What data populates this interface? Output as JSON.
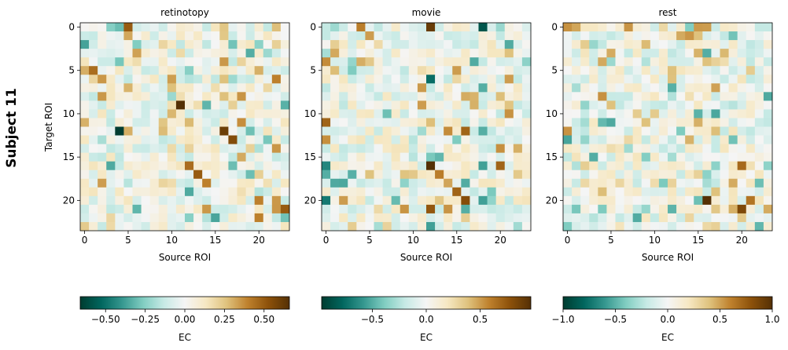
{
  "figure": {
    "row_label": "Subject 11",
    "ylabel": "Target ROI",
    "xlabel": "Source ROI",
    "colorbar_label": "EC",
    "colormap": [
      "#003c30",
      "#01665e",
      "#35978f",
      "#80cdc1",
      "#c7eae5",
      "#f5f5f5",
      "#f6e8c3",
      "#dfc27d",
      "#bf812d",
      "#8c510a",
      "#543005"
    ]
  },
  "chart_data": [
    {
      "type": "heatmap",
      "title": "retinotopy",
      "xlabel": "Source ROI",
      "ylabel": "Target ROI",
      "n": 24,
      "x_ticks": [
        0,
        5,
        10,
        15,
        20
      ],
      "y_ticks": [
        0,
        5,
        10,
        15,
        20
      ],
      "vmin": -0.66,
      "vmax": 0.66,
      "colorbar_ticks": [
        -0.5,
        -0.25,
        0.0,
        0.25,
        0.5
      ],
      "colorbar_tick_labels": [
        "−0.50",
        "−0.25",
        "0.00",
        "0.25",
        "0.50"
      ],
      "colorbar_label": "EC",
      "seed": 11,
      "highlights": [
        {
          "row": 0,
          "col": 5,
          "value": 0.5
        },
        {
          "row": 0,
          "col": 4,
          "value": -0.3
        },
        {
          "row": 0,
          "col": 16,
          "value": 0.25
        },
        {
          "row": 5,
          "col": 1,
          "value": 0.45
        },
        {
          "row": 4,
          "col": 16,
          "value": 0.35
        },
        {
          "row": 5,
          "col": 12,
          "value": -0.25
        },
        {
          "row": 6,
          "col": 22,
          "value": 0.4
        },
        {
          "row": 8,
          "col": 2,
          "value": 0.35
        },
        {
          "row": 9,
          "col": 11,
          "value": 0.66
        },
        {
          "row": 12,
          "col": 4,
          "value": -0.66
        },
        {
          "row": 12,
          "col": 16,
          "value": 0.6
        },
        {
          "row": 13,
          "col": 17,
          "value": 0.55
        },
        {
          "row": 11,
          "col": 9,
          "value": 0.25
        },
        {
          "row": 16,
          "col": 3,
          "value": -0.35
        },
        {
          "row": 16,
          "col": 12,
          "value": 0.45
        },
        {
          "row": 16,
          "col": 17,
          "value": -0.3
        },
        {
          "row": 17,
          "col": 13,
          "value": 0.5
        },
        {
          "row": 17,
          "col": 19,
          "value": -0.3
        },
        {
          "row": 18,
          "col": 14,
          "value": 0.4
        },
        {
          "row": 19,
          "col": 12,
          "value": -0.35
        },
        {
          "row": 20,
          "col": 20,
          "value": 0.4
        },
        {
          "row": 20,
          "col": 22,
          "value": 0.35
        },
        {
          "row": 21,
          "col": 23,
          "value": 0.5
        },
        {
          "row": 22,
          "col": 20,
          "value": 0.4
        },
        {
          "row": 21,
          "col": 14,
          "value": 0.35
        },
        {
          "row": 22,
          "col": 12,
          "value": -0.25
        }
      ]
    },
    {
      "type": "heatmap",
      "title": "movie",
      "xlabel": "Source ROI",
      "ylabel": "",
      "n": 24,
      "x_ticks": [
        0,
        5,
        10,
        15,
        20
      ],
      "y_ticks": [
        0,
        5,
        10,
        15,
        20
      ],
      "vmin": -0.97,
      "vmax": 0.97,
      "colorbar_ticks": [
        -0.5,
        0.0,
        0.5
      ],
      "colorbar_tick_labels": [
        "−0.5",
        "0.0",
        "0.5"
      ],
      "colorbar_label": "EC",
      "seed": 27,
      "highlights": [
        {
          "row": 0,
          "col": 12,
          "value": 0.9
        },
        {
          "row": 0,
          "col": 18,
          "value": -0.85
        },
        {
          "row": 0,
          "col": 4,
          "value": 0.6
        },
        {
          "row": 1,
          "col": 5,
          "value": 0.5
        },
        {
          "row": 4,
          "col": 0,
          "value": 0.55
        },
        {
          "row": 5,
          "col": 1,
          "value": 0.4
        },
        {
          "row": 6,
          "col": 12,
          "value": -0.75
        },
        {
          "row": 6,
          "col": 21,
          "value": 0.5
        },
        {
          "row": 7,
          "col": 18,
          "value": -0.5
        },
        {
          "row": 9,
          "col": 11,
          "value": 0.5
        },
        {
          "row": 11,
          "col": 0,
          "value": 0.7
        },
        {
          "row": 12,
          "col": 14,
          "value": 0.55
        },
        {
          "row": 12,
          "col": 16,
          "value": 0.7
        },
        {
          "row": 12,
          "col": 18,
          "value": -0.5
        },
        {
          "row": 16,
          "col": 0,
          "value": -0.65
        },
        {
          "row": 16,
          "col": 12,
          "value": 0.97
        },
        {
          "row": 16,
          "col": 20,
          "value": 0.7
        },
        {
          "row": 16,
          "col": 18,
          "value": -0.55
        },
        {
          "row": 17,
          "col": 13,
          "value": 0.6
        },
        {
          "row": 17,
          "col": 0,
          "value": -0.5
        },
        {
          "row": 19,
          "col": 15,
          "value": 0.7
        },
        {
          "row": 20,
          "col": 16,
          "value": 0.8
        },
        {
          "row": 20,
          "col": 0,
          "value": -0.7
        },
        {
          "row": 21,
          "col": 12,
          "value": 0.75
        },
        {
          "row": 21,
          "col": 16,
          "value": -0.5
        },
        {
          "row": 20,
          "col": 18,
          "value": -0.55
        },
        {
          "row": 23,
          "col": 12,
          "value": -0.55
        }
      ]
    },
    {
      "type": "heatmap",
      "title": "rest",
      "xlabel": "Source ROI",
      "ylabel": "",
      "n": 24,
      "x_ticks": [
        0,
        5,
        10,
        15,
        20
      ],
      "y_ticks": [
        0,
        5,
        10,
        15,
        20
      ],
      "vmin": -1.0,
      "vmax": 1.0,
      "colorbar_ticks": [
        -1.0,
        -0.5,
        0.0,
        0.5,
        1.0
      ],
      "colorbar_tick_labels": [
        "−1.0",
        "−0.5",
        "0.0",
        "0.5",
        "1.0"
      ],
      "colorbar_label": "EC",
      "seed": 53,
      "highlights": [
        {
          "row": 1,
          "col": 15,
          "value": 0.4
        },
        {
          "row": 2,
          "col": 2,
          "value": 0.35
        },
        {
          "row": 3,
          "col": 15,
          "value": 0.45
        },
        {
          "row": 4,
          "col": 16,
          "value": 0.4
        },
        {
          "row": 5,
          "col": 21,
          "value": 0.35
        },
        {
          "row": 6,
          "col": 12,
          "value": 0.4
        },
        {
          "row": 8,
          "col": 4,
          "value": 0.55
        },
        {
          "row": 9,
          "col": 2,
          "value": -0.35
        },
        {
          "row": 9,
          "col": 5,
          "value": 0.4
        },
        {
          "row": 10,
          "col": 8,
          "value": 0.35
        },
        {
          "row": 11,
          "col": 9,
          "value": 0.4
        },
        {
          "row": 11,
          "col": 2,
          "value": -0.3
        },
        {
          "row": 13,
          "col": 14,
          "value": 0.45
        },
        {
          "row": 16,
          "col": 20,
          "value": 0.7
        },
        {
          "row": 15,
          "col": 12,
          "value": -0.3
        },
        {
          "row": 18,
          "col": 6,
          "value": 0.3
        },
        {
          "row": 19,
          "col": 17,
          "value": 0.4
        },
        {
          "row": 20,
          "col": 16,
          "value": 1.0
        },
        {
          "row": 20,
          "col": 15,
          "value": -0.45
        },
        {
          "row": 20,
          "col": 21,
          "value": 0.65
        },
        {
          "row": 21,
          "col": 20,
          "value": 0.85
        },
        {
          "row": 23,
          "col": 0,
          "value": -0.4
        },
        {
          "row": 22,
          "col": 14,
          "value": 0.3
        }
      ]
    }
  ]
}
